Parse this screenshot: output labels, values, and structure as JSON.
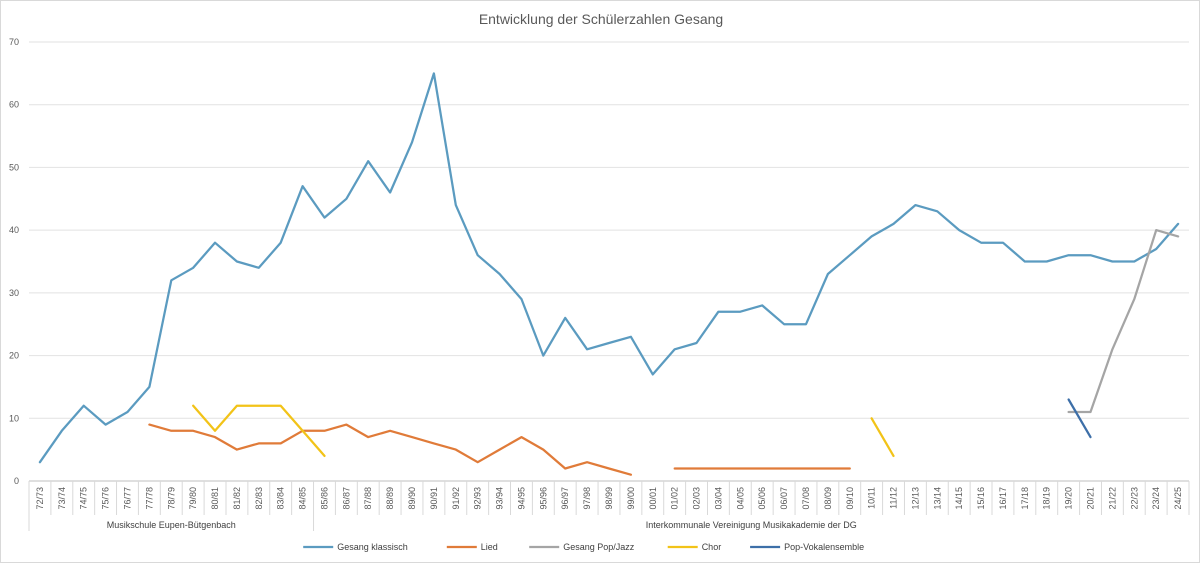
{
  "chart_data": {
    "type": "line",
    "title": "Entwicklung der Schülerzahlen Gesang",
    "xlabel": "",
    "ylabel": "",
    "ylim": [
      0,
      70
    ],
    "yticks": [
      0,
      10,
      20,
      30,
      40,
      50,
      60,
      70
    ],
    "grid": true,
    "legend_position": "bottom",
    "categories": [
      "72/73",
      "73/74",
      "74/75",
      "75/76",
      "76/77",
      "77/78",
      "78/79",
      "79/80",
      "80/81",
      "81/82",
      "82/83",
      "83/84",
      "84/85",
      "85/86",
      "86/87",
      "87/88",
      "88/89",
      "89/90",
      "90/91",
      "91/92",
      "92/93",
      "93/94",
      "94/95",
      "95/96",
      "96/97",
      "97/98",
      "98/99",
      "99/00",
      "00/01",
      "01/02",
      "02/03",
      "03/04",
      "04/05",
      "05/06",
      "06/07",
      "07/08",
      "08/09",
      "09/10",
      "10/11",
      "11/12",
      "12/13",
      "13/14",
      "14/15",
      "15/16",
      "16/17",
      "17/18",
      "18/19",
      "19/20",
      "20/21",
      "21/22",
      "22/23",
      "23/24",
      "24/25"
    ],
    "category_groups": [
      {
        "label": "Musikschule Eupen-Bütgenbach",
        "from": "72/73",
        "to": "84/85"
      },
      {
        "label": "Interkommunale Vereinigung Musikakademie der DG",
        "from": "85/86",
        "to": "24/25"
      }
    ],
    "series": [
      {
        "name": "Gesang klassisch",
        "color": "#5b9bc0",
        "values": [
          3,
          8,
          12,
          9,
          11,
          15,
          32,
          34,
          38,
          35,
          34,
          38,
          47,
          42,
          45,
          51,
          46,
          54,
          65,
          44,
          36,
          33,
          29,
          20,
          26,
          21,
          22,
          23,
          17,
          21,
          22,
          27,
          27,
          28,
          25,
          25,
          33,
          36,
          39,
          41,
          44,
          43,
          40,
          38,
          38,
          35,
          35,
          36,
          36,
          35,
          35,
          37,
          41
        ]
      },
      {
        "name": "Lied",
        "color": "#e07b39",
        "values": [
          null,
          null,
          null,
          null,
          null,
          9,
          8,
          8,
          7,
          5,
          6,
          6,
          8,
          8,
          9,
          7,
          8,
          7,
          6,
          5,
          3,
          5,
          7,
          5,
          2,
          3,
          2,
          1,
          null,
          2,
          2,
          2,
          2,
          2,
          2,
          2,
          2,
          2,
          null,
          null,
          null,
          null,
          null,
          null,
          null,
          null,
          null,
          null,
          null,
          null,
          null,
          null,
          null
        ]
      },
      {
        "name": "Gesang Pop/Jazz",
        "color": "#a5a5a5",
        "values": [
          null,
          null,
          null,
          null,
          null,
          null,
          null,
          null,
          null,
          null,
          null,
          null,
          null,
          null,
          null,
          null,
          null,
          null,
          null,
          null,
          null,
          null,
          null,
          null,
          null,
          null,
          null,
          null,
          null,
          null,
          null,
          null,
          null,
          null,
          null,
          null,
          null,
          null,
          null,
          null,
          null,
          null,
          null,
          null,
          null,
          null,
          null,
          11,
          11,
          21,
          29,
          40,
          39
        ]
      },
      {
        "name": "Chor",
        "color": "#f2c318",
        "values": [
          null,
          null,
          null,
          null,
          null,
          null,
          null,
          12,
          8,
          12,
          12,
          12,
          8,
          4,
          null,
          null,
          null,
          null,
          null,
          null,
          null,
          null,
          null,
          null,
          null,
          null,
          null,
          null,
          null,
          null,
          null,
          null,
          null,
          null,
          null,
          null,
          null,
          null,
          10,
          4,
          null,
          null,
          null,
          null,
          null,
          null,
          null,
          null,
          null,
          null,
          null,
          null,
          null
        ]
      },
      {
        "name": "Pop-Vokalensemble",
        "color": "#3d6fa8",
        "values": [
          null,
          null,
          null,
          null,
          null,
          null,
          null,
          null,
          null,
          null,
          null,
          null,
          null,
          null,
          null,
          null,
          null,
          null,
          null,
          null,
          null,
          null,
          null,
          null,
          null,
          null,
          null,
          null,
          null,
          null,
          null,
          null,
          null,
          null,
          null,
          null,
          null,
          null,
          null,
          null,
          null,
          null,
          null,
          null,
          null,
          null,
          null,
          13,
          7,
          null,
          null,
          null,
          null
        ]
      }
    ]
  }
}
